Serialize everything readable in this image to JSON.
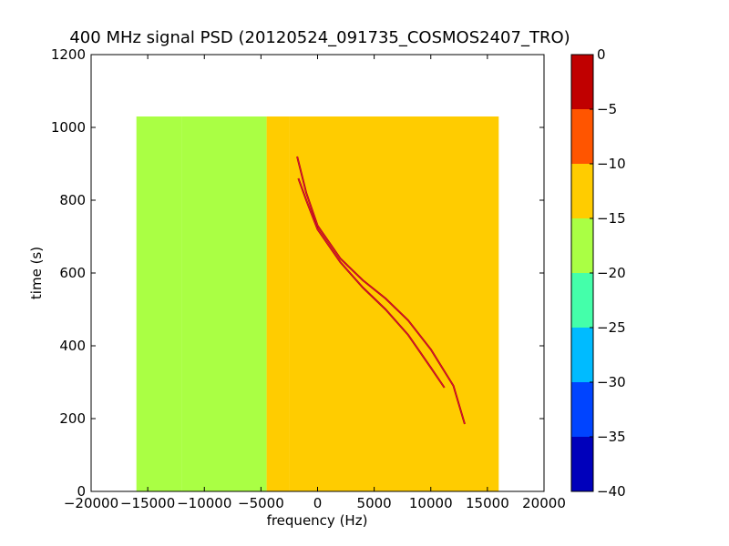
{
  "chart_data": {
    "type": "heatmap",
    "title": "400 MHz signal PSD (20120524_091735_COSMOS2407_TRO)",
    "xlabel": "frequency (Hz)",
    "ylabel": "time (s)",
    "xlim": [
      -20000,
      20000
    ],
    "ylim": [
      0,
      1200
    ],
    "x_ticks": [
      -20000,
      -15000,
      -10000,
      -5000,
      0,
      5000,
      10000,
      15000,
      20000
    ],
    "x_tick_labels": [
      "−20000",
      "−15000",
      "−10000",
      "−5000",
      "0",
      "5000",
      "10000",
      "15000",
      "20000"
    ],
    "y_ticks": [
      0,
      200,
      400,
      600,
      800,
      1000,
      1200
    ],
    "y_tick_labels": [
      "0",
      "200",
      "400",
      "600",
      "800",
      "1000",
      "1200"
    ],
    "data_extent": {
      "x": [
        -16000,
        16000
      ],
      "y": [
        0,
        1030
      ]
    },
    "frequency_bands": [
      {
        "x": [
          -16000,
          -12000
        ],
        "level": -15.5
      },
      {
        "x": [
          -12000,
          -4500
        ],
        "level": -17
      },
      {
        "x": [
          -4500,
          -2500
        ],
        "level": -15
      },
      {
        "x": [
          -2500,
          16000
        ],
        "level": -12
      }
    ],
    "signal_traces": [
      {
        "level": -3,
        "points": [
          [
            -1700,
            860
          ],
          [
            -1000,
            800
          ],
          [
            0,
            720
          ],
          [
            2000,
            630
          ],
          [
            4000,
            560
          ],
          [
            6000,
            500
          ],
          [
            8000,
            430
          ],
          [
            10000,
            340
          ],
          [
            11200,
            285
          ]
        ]
      },
      {
        "level": -3,
        "points": [
          [
            -1800,
            920
          ],
          [
            -1000,
            820
          ],
          [
            0,
            730
          ],
          [
            2000,
            640
          ],
          [
            4000,
            580
          ],
          [
            6000,
            530
          ],
          [
            8000,
            470
          ],
          [
            10000,
            390
          ],
          [
            12000,
            290
          ],
          [
            13000,
            185
          ]
        ]
      }
    ],
    "colorbar": {
      "colormap": "jet",
      "range": [
        -40,
        0
      ],
      "ticks": [
        0,
        -5,
        -10,
        -15,
        -20,
        -25,
        -30,
        -35,
        -40
      ],
      "tick_labels": [
        "0",
        "−5",
        "−10",
        "−15",
        "−20",
        "−25",
        "−30",
        "−35",
        "−40"
      ],
      "bands": [
        {
          "from": -5,
          "to": 0,
          "color": "#c00000"
        },
        {
          "from": -10,
          "to": -5,
          "color": "#ff5500"
        },
        {
          "from": -15,
          "to": -10,
          "color": "#ffcc00"
        },
        {
          "from": -20,
          "to": -15,
          "color": "#aaff44"
        },
        {
          "from": -25,
          "to": -20,
          "color": "#44ffaa"
        },
        {
          "from": -30,
          "to": -25,
          "color": "#00bbff"
        },
        {
          "from": -35,
          "to": -30,
          "color": "#0044ff"
        },
        {
          "from": -40,
          "to": -35,
          "color": "#0000bb"
        }
      ]
    }
  }
}
